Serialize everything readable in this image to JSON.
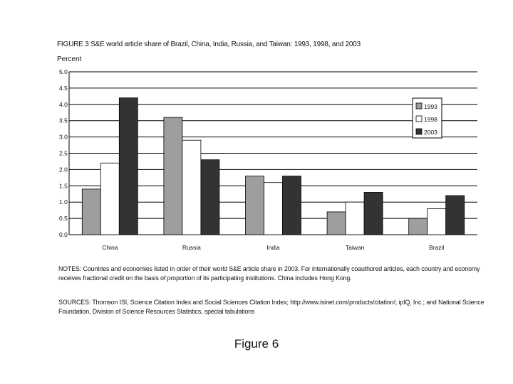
{
  "figure_title": "FIGURE 3   S&E world article share of Brazil, China, India, Russia, and Taiwan: 1993, 1998, and 2003",
  "notes": "NOTES:  Countries and economies listed in order of their world S&E article share in 2003. For internationally coauthored articles, each country and economy receives fractional credit on the basis of proportion of its participating institutions. China includes Hong Kong.",
  "sources": "SOURCES:  Thomson ISI, Science Citation Index and Social Sciences Citation Index; http://www.isinet.com/products/citation/; ipIQ, Inc.; and National Science Foundation, Division of Science Resources Statistics, special tabulations",
  "caption": "Figure 6",
  "colors": {
    "s1993": "#9e9e9e",
    "s1998": "#ffffff",
    "s2003": "#333333",
    "stroke": "#000000"
  },
  "chart_data": {
    "type": "bar",
    "title": "S&E world article share of Brazil, China, India, Russia, and Taiwan: 1993, 1998, and 2003",
    "ylabel": "Percent",
    "xlabel": "",
    "categories": [
      "China",
      "Russia",
      "India",
      "Taiwan",
      "Brazil"
    ],
    "series": [
      {
        "name": "1993",
        "values": [
          1.4,
          3.6,
          1.8,
          0.7,
          0.5
        ]
      },
      {
        "name": "1998",
        "values": [
          2.2,
          2.9,
          1.6,
          1.0,
          0.8
        ]
      },
      {
        "name": "2003",
        "values": [
          4.2,
          2.3,
          1.8,
          1.3,
          1.2
        ]
      }
    ],
    "ylim": [
      0,
      5
    ],
    "yticks": [
      "0.0",
      "0.5",
      "1.0",
      "1.5",
      "2.0",
      "2.5",
      "3.0",
      "3.5",
      "4.0",
      "4.5",
      "5.0"
    ],
    "grid": true,
    "legend_position": "top-right"
  }
}
